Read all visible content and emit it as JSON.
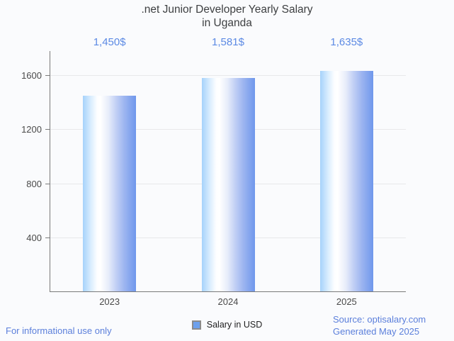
{
  "title": {
    "line1": ".net Junior Developer Yearly Salary",
    "line2": "in Uganda"
  },
  "chart_data": {
    "type": "bar",
    "categories": [
      "2023",
      "2024",
      "2025"
    ],
    "values": [
      1450,
      1581,
      1635
    ],
    "value_labels": [
      "1,450$",
      "1,581$",
      "1,635$"
    ],
    "series": [
      {
        "name": "Salary in USD",
        "values": [
          1450,
          1581,
          1635
        ]
      }
    ],
    "title": ".net Junior Developer Yearly Salary in Uganda",
    "xlabel": "",
    "ylabel": "",
    "yticks": [
      400,
      800,
      1200,
      1600
    ],
    "ylim": [
      0,
      1780
    ],
    "grid": true,
    "legend_position": "bottom"
  },
  "legend": {
    "label": "Salary in USD"
  },
  "footer": {
    "left": "For informational use only",
    "source": "Source: optisalary.com",
    "generated": "Generated May 2025"
  },
  "colors": {
    "background": "#fafbfd",
    "title_text": "#3e4042",
    "axis_text": "#4a4a4a",
    "value_label_text": "#5c8ae4",
    "footer_text": "#5b7fdb",
    "gridline": "#e8e8ea",
    "axis_line": "#7a7a7a",
    "bar_gradient_left": "#a6d2fb",
    "bar_gradient_mid": "#ffffff",
    "bar_gradient_right": "#6f97ec",
    "legend_swatch": "#6ca0ed",
    "legend_swatch_border": "#8b8b8b",
    "legend_text": "#1f1f1f"
  }
}
